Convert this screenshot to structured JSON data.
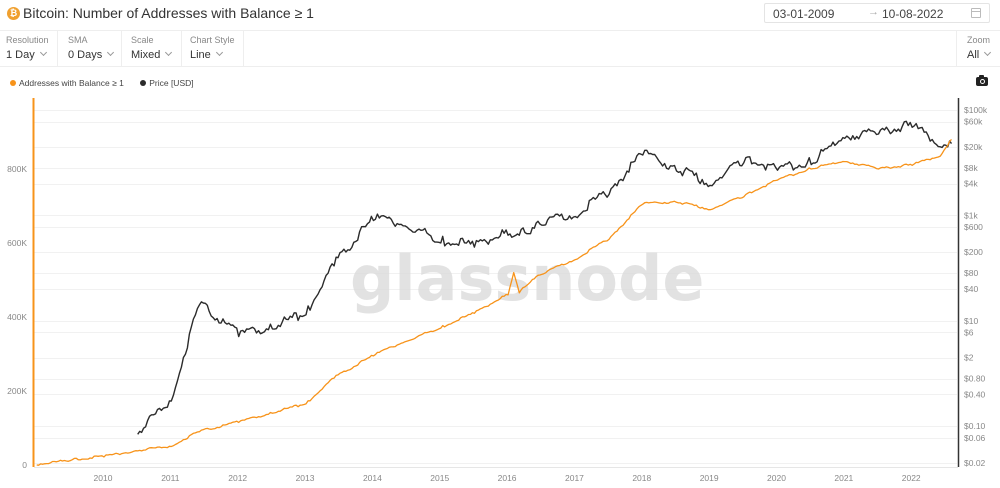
{
  "header": {
    "icon": "bitcoin-icon",
    "title": "Bitcoin: Number of Addresses with Balance ≥ 1",
    "date_start": "03-01-2009",
    "date_arrow": "→",
    "date_end": "10-08-2022"
  },
  "controls": [
    {
      "label": "Resolution",
      "value": "1 Day"
    },
    {
      "label": "SMA",
      "value": "0 Days"
    },
    {
      "label": "Scale",
      "value": "Mixed"
    },
    {
      "label": "Chart Style",
      "value": "Line"
    }
  ],
  "zoom": {
    "label": "Zoom",
    "value": "All"
  },
  "legend": [
    {
      "label": "Addresses with Balance ≥ 1",
      "color": "#f7931a"
    },
    {
      "label": "Price [USD]",
      "color": "#2b2b2b"
    }
  ],
  "watermark": "glassnode",
  "chart_data": {
    "type": "line",
    "title": "Bitcoin: Number of Addresses with Balance ≥ 1",
    "x": [
      "2009-01",
      "2009-07",
      "2010-01",
      "2010-07",
      "2011-01",
      "2011-06",
      "2012-01",
      "2012-07",
      "2013-01",
      "2013-06",
      "2014-01",
      "2014-07",
      "2015-01",
      "2015-07",
      "2016-01",
      "2016-02",
      "2016-03",
      "2016-05",
      "2016-07",
      "2017-01",
      "2017-07",
      "2018-01",
      "2018-07",
      "2019-01",
      "2019-07",
      "2020-01",
      "2020-07",
      "2021-01",
      "2021-07",
      "2022-01",
      "2022-06",
      "2022-08"
    ],
    "series": [
      {
        "name": "Addresses with Balance ≥ 1",
        "axis": "left",
        "color": "#f7931a",
        "values": [
          0,
          12000,
          22000,
          38000,
          50000,
          90000,
          115000,
          140000,
          165000,
          235000,
          295000,
          335000,
          370000,
          410000,
          460000,
          520000,
          465000,
          495000,
          515000,
          555000,
          610000,
          705000,
          710000,
          690000,
          725000,
          770000,
          800000,
          820000,
          800000,
          810000,
          835000,
          880000
        ]
      },
      {
        "name": "Price [USD]",
        "axis": "right",
        "color": "#2b2b2b",
        "start": "2010-07",
        "values": [
          null,
          null,
          null,
          0.07,
          0.3,
          20,
          5,
          7,
          13,
          110,
          800,
          600,
          300,
          250,
          420,
          400,
          420,
          450,
          650,
          950,
          2500,
          14000,
          7000,
          3700,
          10000,
          7200,
          9200,
          29000,
          35000,
          47000,
          20000,
          23000
        ]
      }
    ],
    "xlabel": "",
    "x_ticks": [
      "2010",
      "2011",
      "2012",
      "2013",
      "2014",
      "2015",
      "2016",
      "2017",
      "2018",
      "2019",
      "2020",
      "2021",
      "2022"
    ],
    "left_axis": {
      "ticks": [
        "0",
        "200K",
        "400K",
        "600K",
        "800K"
      ],
      "ylim": [
        0,
        1000000
      ],
      "scale": "linear"
    },
    "right_axis": {
      "ticks": [
        "$100k",
        "$60k",
        "$20k",
        "$8k",
        "$4k",
        "$1k",
        "$600",
        "$200",
        "$80",
        "$40",
        "$10",
        "$6",
        "$2",
        "$0.80",
        "$0.40",
        "$0.10",
        "$0.06",
        "$0.02"
      ],
      "scale": "log"
    },
    "grid": true,
    "legend_position": "top-left"
  }
}
